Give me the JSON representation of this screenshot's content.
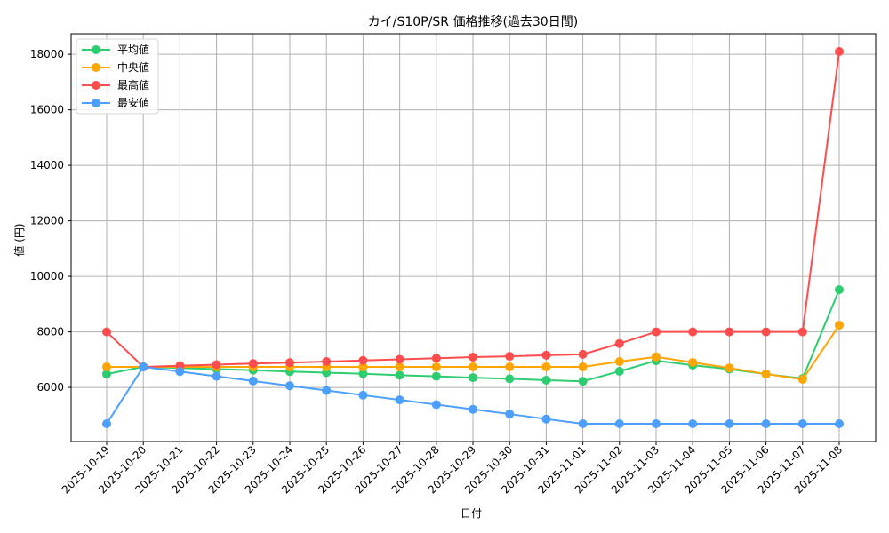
{
  "chart_data": {
    "type": "line",
    "title": "カイ/S10P/SR 価格推移(過去30日間)",
    "xlabel": "日付",
    "ylabel": "値 (円)",
    "ylim": [
      4050,
      18740
    ],
    "yticks": [
      6000,
      8000,
      10000,
      12000,
      14000,
      16000,
      18000
    ],
    "grid": true,
    "legend_position": "upper left",
    "categories": [
      "2025-10-19",
      "2025-10-20",
      "2025-10-21",
      "2025-10-22",
      "2025-10-23",
      "2025-10-24",
      "2025-10-25",
      "2025-10-26",
      "2025-10-27",
      "2025-10-28",
      "2025-10-29",
      "2025-10-30",
      "2025-10-31",
      "2025-11-01",
      "2025-11-02",
      "2025-11-03",
      "2025-11-04",
      "2025-11-05",
      "2025-11-06",
      "2025-11-07",
      "2025-11-08"
    ],
    "series": [
      {
        "name": "平均値",
        "color": "#2ecc71",
        "values": [
          6480,
          6740,
          6700,
          6660,
          6620,
          6570,
          6530,
          6490,
          6440,
          6400,
          6350,
          6310,
          6260,
          6220,
          6580,
          6960,
          6800,
          6660,
          6480,
          6320,
          9520
        ]
      },
      {
        "name": "中央値",
        "color": "#ffa500",
        "values": [
          6740,
          6740,
          6740,
          6740,
          6740,
          6740,
          6740,
          6740,
          6740,
          6740,
          6740,
          6740,
          6740,
          6740,
          6930,
          7100,
          6900,
          6700,
          6480,
          6290,
          8240
        ]
      },
      {
        "name": "最高値",
        "color": "#ff4d4d",
        "values": [
          8000,
          6740,
          6780,
          6820,
          6860,
          6890,
          6930,
          6970,
          7010,
          7050,
          7090,
          7120,
          7160,
          7190,
          7580,
          8000,
          8000,
          8000,
          8000,
          8000,
          18100
        ]
      },
      {
        "name": "最安値",
        "color": "#4d9fff",
        "values": [
          4690,
          6740,
          6570,
          6400,
          6230,
          6060,
          5890,
          5720,
          5550,
          5380,
          5210,
          5040,
          4860,
          4690,
          4690,
          4690,
          4690,
          4690,
          4690,
          4690,
          4690
        ]
      }
    ]
  }
}
